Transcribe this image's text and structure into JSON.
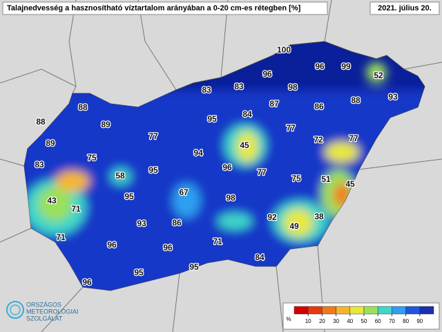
{
  "header": {
    "title": "Talajnedvesség a hasznosítható víztartalom arányában a 0-20 cm-es rétegben [%]",
    "date": "2021. július 20."
  },
  "stations": [
    100,
    96,
    99,
    52,
    96,
    83,
    83,
    98,
    93,
    88,
    87,
    86,
    88,
    84,
    95,
    89,
    77,
    88,
    77,
    72,
    77,
    89,
    45,
    94,
    75,
    96,
    77,
    83,
    95,
    58,
    75,
    51,
    45,
    67,
    95,
    98,
    43,
    71,
    92,
    38,
    93,
    86,
    49,
    71,
    96,
    96,
    71,
    84,
    95,
    95,
    96
  ],
  "colorbar": {
    "unit": "%",
    "ticks": [
      10,
      20,
      30,
      40,
      50,
      60,
      70,
      80,
      90
    ],
    "colors": [
      "#d40000",
      "#e8380f",
      "#f07a1a",
      "#f5b52a",
      "#e8e83a",
      "#9be05a",
      "#3fd6c8",
      "#2fa0f0",
      "#1f55e0",
      "#1a2fb0"
    ]
  },
  "logo": [
    "ORSZÁGOS",
    "METEOROLÓGIAI",
    "SZOLGÁLAT"
  ]
}
